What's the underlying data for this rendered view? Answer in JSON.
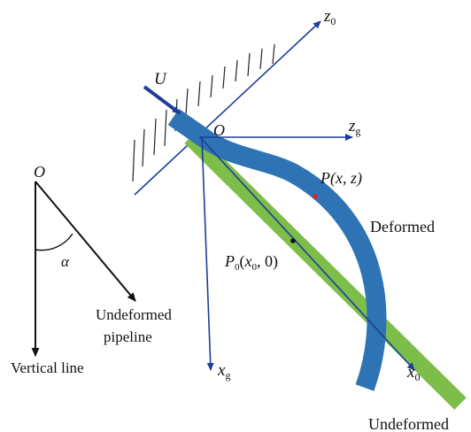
{
  "colors": {
    "axis": "#1f3d99",
    "black": "#111111",
    "deformed_pipe": "#2e74b5",
    "undeformed_pipe": "#7dbd4a",
    "marker_P": "#e0202a",
    "marker_P0": "#111111"
  },
  "labels": {
    "flow": "U",
    "origin_main": "O",
    "z0": {
      "main": "z",
      "sub": "0"
    },
    "zg": {
      "main": "z",
      "sub": "g"
    },
    "xg": {
      "main": "x",
      "sub": "g"
    },
    "x0": {
      "main": "x",
      "sub": "0"
    },
    "point_P": "P(x, z)",
    "point_P0": {
      "main": "P",
      "sub": "0",
      "open": "(",
      "x": "x",
      "x_sub": "0",
      "rest": ", 0)"
    },
    "deformed": "Deformed",
    "undeformed": "Undeformed",
    "inset_origin": "O",
    "inset_angle": "α",
    "inset_undeformed_line1": "Undeformed",
    "inset_undeformed_line2": "pipeline",
    "inset_vertical": "Vertical line"
  }
}
